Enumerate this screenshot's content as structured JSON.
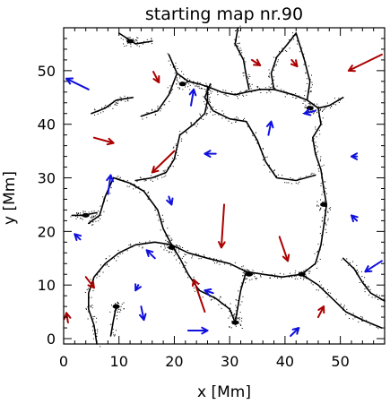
{
  "chart_data": {
    "type": "vector-field",
    "title": "starting map nr.90",
    "xlabel": "x [Mm]",
    "ylabel": "y [Mm]",
    "xlim": [
      0,
      58
    ],
    "ylim": [
      -1,
      58
    ],
    "xticks": [
      0,
      10,
      20,
      30,
      40,
      50
    ],
    "yticks": [
      0,
      10,
      20,
      30,
      40,
      50
    ],
    "grid": false,
    "colors": {
      "red": "#aa0000",
      "blue": "#1010dd",
      "lanes": "#000000"
    },
    "arrows": [
      {
        "color": "red",
        "tail": [
          57.5,
          53.0
        ],
        "head": [
          51.5,
          50.0
        ]
      },
      {
        "color": "red",
        "tail": [
          16.2,
          49.8
        ],
        "head": [
          17.2,
          47.8
        ]
      },
      {
        "color": "red",
        "tail": [
          34.0,
          52.0
        ],
        "head": [
          35.5,
          51.0
        ]
      },
      {
        "color": "red",
        "tail": [
          41.2,
          52.0
        ],
        "head": [
          42.2,
          50.8
        ]
      },
      {
        "color": "red",
        "tail": [
          5.5,
          37.5
        ],
        "head": [
          9.0,
          36.5
        ]
      },
      {
        "color": "red",
        "tail": [
          20.0,
          35.0
        ],
        "head": [
          16.0,
          31.0
        ]
      },
      {
        "color": "red",
        "tail": [
          29.0,
          25.0
        ],
        "head": [
          28.5,
          17.0
        ]
      },
      {
        "color": "red",
        "tail": [
          39.0,
          19.0
        ],
        "head": [
          40.5,
          14.5
        ]
      },
      {
        "color": "red",
        "tail": [
          25.5,
          5.0
        ],
        "head": [
          23.5,
          11.0
        ]
      },
      {
        "color": "red",
        "tail": [
          4.0,
          11.5
        ],
        "head": [
          5.5,
          9.5
        ]
      },
      {
        "color": "red",
        "tail": [
          0.8,
          3.0
        ],
        "head": [
          0.5,
          4.8
        ]
      },
      {
        "color": "red",
        "tail": [
          46.0,
          4.0
        ],
        "head": [
          47.0,
          6.0
        ]
      },
      {
        "color": "blue",
        "tail": [
          4.5,
          46.5
        ],
        "head": [
          0.5,
          48.5
        ]
      },
      {
        "color": "blue",
        "tail": [
          23.0,
          43.5
        ],
        "head": [
          23.5,
          46.5
        ]
      },
      {
        "color": "blue",
        "tail": [
          45.5,
          42.5
        ],
        "head": [
          43.5,
          42.0
        ]
      },
      {
        "color": "blue",
        "tail": [
          37.0,
          38.0
        ],
        "head": [
          37.5,
          40.5
        ]
      },
      {
        "color": "blue",
        "tail": [
          27.5,
          34.5
        ],
        "head": [
          25.5,
          34.5
        ]
      },
      {
        "color": "blue",
        "tail": [
          53.0,
          34.0
        ],
        "head": [
          52.0,
          34.0
        ]
      },
      {
        "color": "blue",
        "tail": [
          8.0,
          27.0
        ],
        "head": [
          8.5,
          30.5
        ]
      },
      {
        "color": "blue",
        "tail": [
          19.0,
          26.5
        ],
        "head": [
          19.5,
          25.0
        ]
      },
      {
        "color": "blue",
        "tail": [
          53.0,
          22.0
        ],
        "head": [
          52.0,
          23.0
        ]
      },
      {
        "color": "blue",
        "tail": [
          3.0,
          18.5
        ],
        "head": [
          2.0,
          19.5
        ]
      },
      {
        "color": "blue",
        "tail": [
          16.5,
          15.0
        ],
        "head": [
          15.0,
          16.5
        ]
      },
      {
        "color": "blue",
        "tail": [
          57.5,
          14.5
        ],
        "head": [
          54.5,
          12.5
        ]
      },
      {
        "color": "blue",
        "tail": [
          13.5,
          10.0
        ],
        "head": [
          13.0,
          9.0
        ]
      },
      {
        "color": "blue",
        "tail": [
          27.0,
          8.5
        ],
        "head": [
          25.5,
          9.0
        ]
      },
      {
        "color": "blue",
        "tail": [
          14.0,
          6.0
        ],
        "head": [
          14.5,
          3.5
        ]
      },
      {
        "color": "blue",
        "tail": [
          22.5,
          1.5
        ],
        "head": [
          26.0,
          1.5
        ]
      },
      {
        "color": "blue",
        "tail": [
          41.0,
          0.5
        ],
        "head": [
          42.5,
          2.0
        ]
      }
    ],
    "lanes": [
      [
        [
          10.0,
          57.0
        ],
        [
          13.0,
          55.0
        ],
        [
          16.0,
          55.5
        ]
      ],
      [
        [
          19.0,
          53.0
        ],
        [
          20.5,
          49.5
        ],
        [
          22.5,
          48.0
        ],
        [
          24.5,
          47.5
        ],
        [
          26.0,
          47.0
        ]
      ],
      [
        [
          20.5,
          49.5
        ],
        [
          19.0,
          45.5
        ],
        [
          17.0,
          42.5
        ],
        [
          14.0,
          41.5
        ]
      ],
      [
        [
          26.0,
          47.0
        ],
        [
          26.0,
          44.5
        ],
        [
          25.5,
          42.0
        ],
        [
          23.5,
          40.0
        ],
        [
          21.0,
          38.0
        ]
      ],
      [
        [
          26.0,
          47.0
        ],
        [
          28.5,
          46.0
        ],
        [
          31.0,
          45.5
        ],
        [
          33.0,
          46.0
        ],
        [
          35.5,
          46.5
        ],
        [
          38.0,
          46.5
        ],
        [
          41.5,
          45.5
        ],
        [
          44.0,
          44.5
        ],
        [
          46.0,
          43.0
        ]
      ],
      [
        [
          38.0,
          46.5
        ],
        [
          37.5,
          49.5
        ],
        [
          38.5,
          52.5
        ],
        [
          40.5,
          55.0
        ],
        [
          42.0,
          57.0
        ]
      ],
      [
        [
          44.0,
          44.5
        ],
        [
          44.5,
          48.0
        ],
        [
          43.5,
          52.0
        ],
        [
          42.0,
          57.0
        ]
      ],
      [
        [
          31.5,
          58.0
        ],
        [
          31.0,
          55.0
        ],
        [
          32.5,
          52.0
        ],
        [
          33.0,
          49.0
        ],
        [
          33.5,
          46.5
        ]
      ],
      [
        [
          46.0,
          43.0
        ],
        [
          48.0,
          43.5
        ],
        [
          50.5,
          45.0
        ]
      ],
      [
        [
          46.0,
          43.0
        ],
        [
          46.5,
          40.0
        ],
        [
          45.0,
          37.5
        ],
        [
          45.5,
          34.5
        ],
        [
          46.5,
          31.5
        ],
        [
          47.0,
          28.0
        ],
        [
          47.5,
          25.0
        ],
        [
          47.0,
          21.0
        ],
        [
          46.5,
          17.5
        ],
        [
          45.5,
          14.0
        ],
        [
          43.0,
          12.0
        ],
        [
          39.5,
          11.5
        ],
        [
          36.0,
          12.0
        ],
        [
          33.0,
          12.5
        ]
      ],
      [
        [
          33.0,
          12.5
        ],
        [
          30.0,
          14.0
        ],
        [
          26.0,
          15.0
        ],
        [
          22.5,
          16.0
        ],
        [
          19.5,
          17.5
        ]
      ],
      [
        [
          33.0,
          12.5
        ],
        [
          32.0,
          9.0
        ],
        [
          31.5,
          6.0
        ],
        [
          31.0,
          3.0
        ]
      ],
      [
        [
          43.0,
          12.0
        ],
        [
          46.0,
          10.0
        ],
        [
          48.5,
          7.5
        ],
        [
          51.0,
          5.0
        ],
        [
          54.0,
          3.5
        ],
        [
          57.5,
          2.0
        ]
      ],
      [
        [
          19.5,
          17.5
        ],
        [
          18.0,
          20.5
        ],
        [
          17.0,
          24.0
        ],
        [
          14.5,
          27.5
        ],
        [
          12.0,
          29.0
        ],
        [
          9.0,
          30.0
        ]
      ],
      [
        [
          19.5,
          17.5
        ],
        [
          16.5,
          18.0
        ],
        [
          13.0,
          17.5
        ],
        [
          10.0,
          16.0
        ],
        [
          7.5,
          14.0
        ],
        [
          5.5,
          11.5
        ],
        [
          4.5,
          8.5
        ],
        [
          4.5,
          5.5
        ],
        [
          5.5,
          2.5
        ],
        [
          6.0,
          -1.0
        ]
      ],
      [
        [
          19.5,
          17.5
        ],
        [
          21.0,
          15.0
        ],
        [
          22.5,
          12.0
        ],
        [
          24.5,
          9.0
        ],
        [
          27.5,
          7.5
        ],
        [
          30.0,
          5.5
        ],
        [
          31.0,
          3.0
        ]
      ],
      [
        [
          9.0,
          30.0
        ],
        [
          7.5,
          26.5
        ],
        [
          6.5,
          23.0
        ],
        [
          4.5,
          21.5
        ]
      ],
      [
        [
          6.0,
          23.5
        ],
        [
          3.5,
          23.0
        ],
        [
          1.5,
          23.0
        ]
      ],
      [
        [
          9.5,
          6.0
        ],
        [
          9.0,
          3.5
        ],
        [
          8.5,
          0.5
        ]
      ],
      [
        [
          26.5,
          47.5
        ],
        [
          25.5,
          45.0
        ],
        [
          27.0,
          42.5
        ],
        [
          30.0,
          41.0
        ],
        [
          33.0,
          40.5
        ]
      ],
      [
        [
          50.5,
          15.0
        ],
        [
          52.5,
          13.0
        ],
        [
          54.0,
          10.5
        ],
        [
          55.5,
          8.5
        ],
        [
          58.0,
          7.0
        ]
      ],
      [
        [
          21.0,
          38.0
        ],
        [
          20.0,
          33.5
        ],
        [
          18.5,
          31.0
        ],
        [
          16.0,
          30.0
        ],
        [
          13.0,
          29.5
        ]
      ],
      [
        [
          33.0,
          40.5
        ],
        [
          35.0,
          37.0
        ],
        [
          36.5,
          33.0
        ],
        [
          38.5,
          30.0
        ],
        [
          42.0,
          29.5
        ],
        [
          45.5,
          30.5
        ]
      ],
      [
        [
          12.5,
          45.0
        ],
        [
          9.5,
          44.5
        ],
        [
          7.5,
          43.0
        ],
        [
          5.0,
          42.0
        ]
      ]
    ],
    "clumps": [
      [
        44.5,
        43.0
      ],
      [
        43.0,
        12.0
      ],
      [
        33.5,
        12.0
      ],
      [
        19.5,
        17.0
      ],
      [
        21.5,
        47.5
      ],
      [
        9.5,
        6.0
      ],
      [
        4.0,
        23.0
      ],
      [
        47.0,
        25.0
      ],
      [
        12.0,
        55.5
      ],
      [
        31.0,
        3.0
      ]
    ]
  }
}
